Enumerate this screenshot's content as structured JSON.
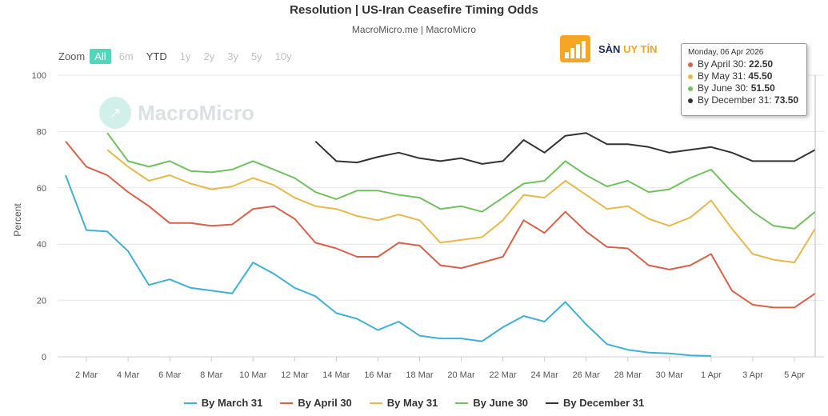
{
  "title": "Resolution | US-Iran Ceasefire Timing Odds",
  "subtitle": "MacroMicro.me | MacroMicro",
  "zoom": {
    "label": "Zoom",
    "buttons": [
      "All",
      "6m",
      "YTD",
      "1y",
      "2y",
      "3y",
      "5y",
      "10y"
    ],
    "active": "All"
  },
  "watermark": "MacroMicro",
  "logo": {
    "brand": "SÀN",
    "accent": "UY TÍN"
  },
  "tooltip": {
    "date": "Monday, 06 Apr 2026",
    "rows": [
      {
        "label": "By April 30: ",
        "value": "22.50",
        "color": "#d9614a"
      },
      {
        "label": "By May 31: ",
        "value": "45.50",
        "color": "#e9b84a"
      },
      {
        "label": "By June 30: ",
        "value": "51.50",
        "color": "#71c25e"
      },
      {
        "label": "By December 31: ",
        "value": "73.50",
        "color": "#333333"
      }
    ]
  },
  "chart_data": {
    "type": "line",
    "title": "Resolution | US-Iran Ceasefire Timing Odds",
    "xlabel": "",
    "ylabel": "Percent",
    "ylim": [
      0,
      100
    ],
    "yticks": [
      0,
      20,
      40,
      60,
      80,
      100
    ],
    "x_start": "1 Mar",
    "x_end": "6 Apr",
    "xtick_labels": [
      "2 Mar",
      "4 Mar",
      "6 Mar",
      "8 Mar",
      "10 Mar",
      "12 Mar",
      "14 Mar",
      "16 Mar",
      "18 Mar",
      "20 Mar",
      "22 Mar",
      "24 Mar",
      "26 Mar",
      "28 Mar",
      "30 Mar",
      "1 Apr",
      "3 Apr",
      "5 Apr"
    ],
    "xtick_days": [
      1,
      3,
      5,
      7,
      9,
      11,
      13,
      15,
      17,
      19,
      21,
      23,
      25,
      27,
      29,
      31,
      33,
      35
    ],
    "series": [
      {
        "name": "By March 31",
        "color": "#3fb1d6",
        "start_day": 0,
        "values": [
          64.5,
          45,
          44.5,
          37.5,
          25.5,
          27.5,
          24.5,
          23.5,
          22.5,
          33.5,
          29.5,
          24.5,
          21.5,
          15.5,
          13.5,
          9.5,
          12.5,
          7.5,
          6.5,
          6.5,
          5.5,
          10.5,
          14.5,
          12.5,
          19.5,
          11.5,
          4.5,
          2.5,
          1.5,
          1.2,
          0.5,
          0.3
        ]
      },
      {
        "name": "By April 30",
        "color": "#d9614a",
        "start_day": 0,
        "values": [
          76.5,
          67.5,
          64.5,
          58.5,
          53.5,
          47.5,
          47.5,
          46.5,
          47,
          52.5,
          53.5,
          49,
          40.5,
          38.5,
          35.5,
          35.5,
          40.5,
          39.5,
          32.5,
          31.5,
          33.5,
          35.5,
          48.5,
          44,
          51.5,
          44.5,
          39,
          38.5,
          32.5,
          31,
          32.5,
          36.5,
          23.5,
          18.5,
          17.5,
          17.5,
          22.5
        ]
      },
      {
        "name": "By May 31",
        "color": "#e9b84a",
        "start_day": 2,
        "values": [
          73.5,
          67.5,
          62.5,
          64.5,
          61.5,
          59.5,
          60.5,
          63.5,
          61,
          56.5,
          53.5,
          52.5,
          50,
          48.5,
          50.5,
          48.5,
          40.5,
          41.5,
          42.5,
          48.5,
          57.5,
          56.5,
          62.5,
          57.5,
          52.5,
          53.5,
          49,
          46.5,
          49.5,
          55.5,
          45.5,
          36.5,
          34.5,
          33.5,
          45.5
        ]
      },
      {
        "name": "By June 30",
        "color": "#71c25e",
        "start_day": 2,
        "values": [
          79.5,
          69.5,
          67.5,
          69.5,
          66,
          65.5,
          66.5,
          69.5,
          66.5,
          63.5,
          58.5,
          56,
          59,
          59,
          57.5,
          56.5,
          52.5,
          53.5,
          51.5,
          56.5,
          61.5,
          62.5,
          69.5,
          64.5,
          60.5,
          62.5,
          58.5,
          59.5,
          63.5,
          66.5,
          58.5,
          51.5,
          46.5,
          45.5,
          51.5
        ]
      },
      {
        "name": "By December 31",
        "color": "#333333",
        "start_day": 12,
        "values": [
          76.5,
          69.5,
          69,
          71,
          72.5,
          70.5,
          69.5,
          70.5,
          68.5,
          69.5,
          77,
          72.5,
          78.5,
          79.5,
          75.5,
          75.5,
          74.5,
          72.5,
          73.5,
          74.5,
          72.5,
          69.5,
          69.5,
          69.5,
          73.5
        ]
      }
    ]
  }
}
